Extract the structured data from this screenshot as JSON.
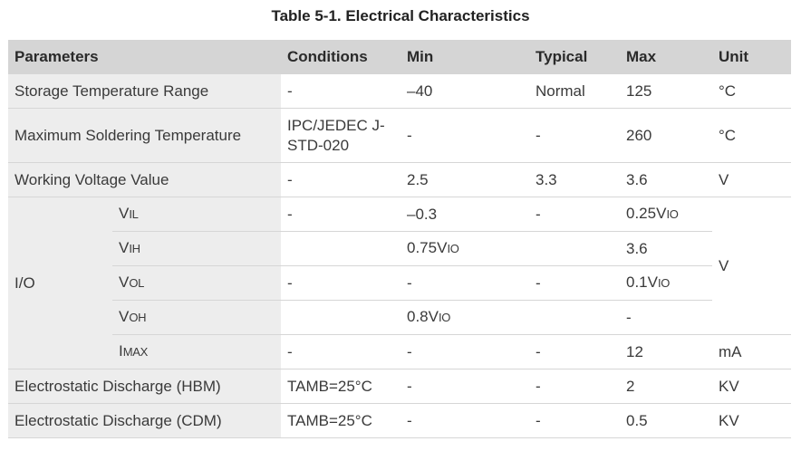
{
  "title": "Table 5-1. Electrical Characteristics",
  "table": {
    "headers": [
      "Parameters",
      "Conditions",
      "Min",
      "Typical",
      "Max",
      "Unit"
    ],
    "rows_before": [
      {
        "parameter": "Storage Temperature Range",
        "conditions": "-",
        "min": "–40",
        "typical": "Normal",
        "max": "125",
        "unit": "°C"
      },
      {
        "parameter": "Maximum Soldering Temperature",
        "conditions": "IPC/JEDEC J-STD-020",
        "min": "-",
        "typical": "-",
        "max": "260",
        "unit": "°C"
      },
      {
        "parameter": "Working Voltage Value",
        "conditions": "-",
        "min": "2.5",
        "typical": "3.3",
        "max": "3.6",
        "unit": "V"
      }
    ],
    "io": {
      "label": "I/O",
      "shared_unit": "V",
      "rows": [
        {
          "symbol": {
            "main": "V",
            "sub": "IL"
          },
          "conditions": "-",
          "min": "–0.3",
          "typical": "-",
          "max": {
            "main": "0.25V",
            "sub": "IO"
          }
        },
        {
          "symbol": {
            "main": "V",
            "sub": "IH"
          },
          "min": {
            "main": "0.75V",
            "sub": "IO"
          },
          "max": "3.6"
        },
        {
          "symbol": {
            "main": "V",
            "sub": "OL"
          },
          "conditions": "-",
          "min": "-",
          "typical": "-",
          "max": {
            "main": "0.1V",
            "sub": "IO"
          }
        },
        {
          "symbol": {
            "main": "V",
            "sub": "OH"
          },
          "min": {
            "main": "0.8V",
            "sub": "IO"
          },
          "max": "-"
        },
        {
          "symbol": {
            "main": "I",
            "sub": "MAX"
          },
          "conditions": "-",
          "min": "-",
          "typical": "-",
          "max": "12",
          "unit": "mA"
        }
      ]
    },
    "rows_after": [
      {
        "parameter": "Electrostatic Discharge (HBM)",
        "conditions": "TAMB=25°C",
        "min": "-",
        "typical": "-",
        "max": "2",
        "unit": "KV"
      },
      {
        "parameter": "Electrostatic Discharge (CDM)",
        "conditions": "TAMB=25°C",
        "min": "-",
        "typical": "-",
        "max": "0.5",
        "unit": "KV"
      }
    ]
  }
}
